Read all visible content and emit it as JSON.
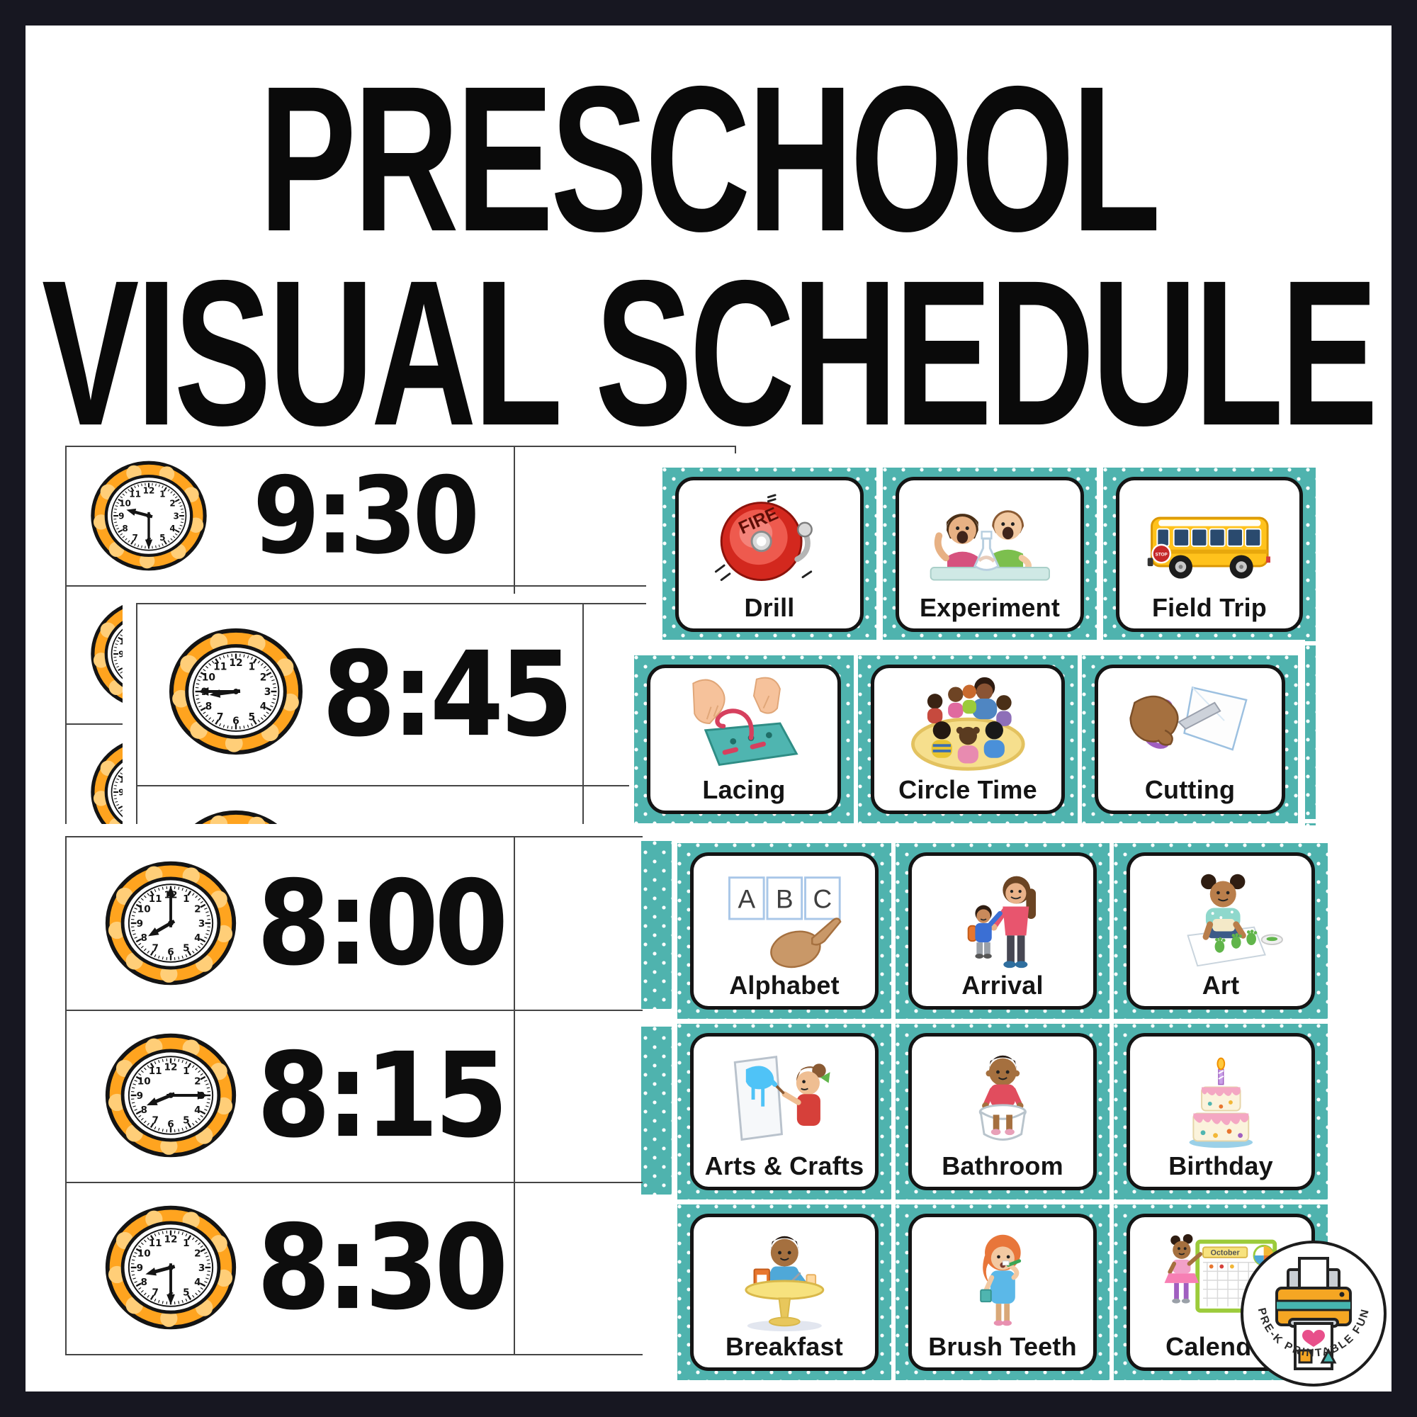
{
  "frame": {
    "color": "#171721"
  },
  "title": {
    "line1": "PRESCHOOL",
    "line2": "VISUAL SCHEDULE"
  },
  "colors": {
    "teal": "#4FB3AE",
    "card_border": "#141414"
  },
  "clock_style": {
    "ring_color": "#FFA41F",
    "dot_color": "#FFCE78",
    "face_color": "#ffffff",
    "hand_color": "#141414"
  },
  "clock_sheets": {
    "back": {
      "rows": [
        {
          "time": "9:30"
        },
        {
          "time": ""
        },
        {
          "time": ""
        }
      ]
    },
    "middle": {
      "rows": [
        {
          "time": "8:45"
        },
        {
          "time": ""
        }
      ]
    },
    "front": {
      "rows": [
        {
          "time": "8:00"
        },
        {
          "time": "8:15"
        },
        {
          "time": "8:30"
        }
      ]
    }
  },
  "activity_cards": {
    "top_row": [
      {
        "label": "Drill"
      },
      {
        "label": "Experiment"
      },
      {
        "label": "Field Trip"
      }
    ],
    "middle_row": [
      {
        "label": "Lacing"
      },
      {
        "label": "Circle Time"
      },
      {
        "label": "Cutting"
      }
    ],
    "front_grid": [
      [
        {
          "label": "Alphabet"
        },
        {
          "label": "Arrival"
        },
        {
          "label": "Art"
        }
      ],
      [
        {
          "label": "Arts & Crafts"
        },
        {
          "label": "Bathroom"
        },
        {
          "label": "Birthday"
        }
      ],
      [
        {
          "label": "Breakfast"
        },
        {
          "label": "Brush Teeth"
        },
        {
          "label": "Calendar"
        }
      ]
    ]
  },
  "decor_text": {
    "fire_bell": "FIRE",
    "bus_stop_sign": "STOP",
    "calendar_month": "October",
    "alphabet_letters": [
      "A",
      "B",
      "C"
    ]
  },
  "logo": {
    "text": "PRE-K PRINTABLE FUN"
  }
}
